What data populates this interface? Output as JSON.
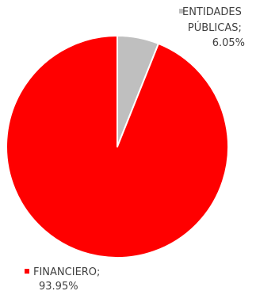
{
  "chart_data": {
    "type": "pie",
    "slices": [
      {
        "name": "ENTIDADES PÚBLICAS",
        "value": 6.05,
        "label_lines": [
          "ENTIDADES",
          "PÚBLICAS;",
          "6.05%"
        ],
        "color": "#bfbfbf"
      },
      {
        "name": "FINANCIERO",
        "value": 93.95,
        "label_lines": [
          "FINANCIERO;",
          "93.95%"
        ],
        "color": "#ff0000"
      }
    ],
    "start_angle_deg": 0,
    "direction": "clockwise",
    "separator_color": "#ffffff"
  }
}
